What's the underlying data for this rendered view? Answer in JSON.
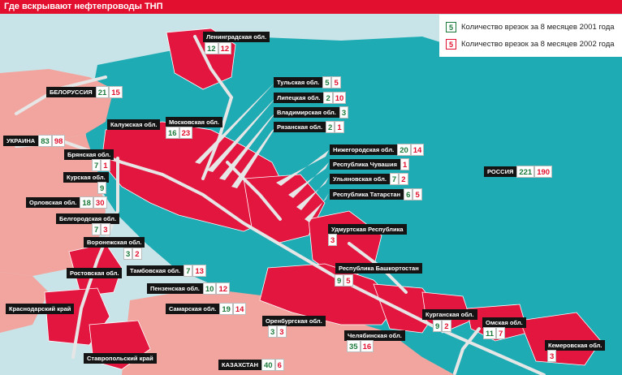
{
  "title": "Где вскрывают нефтепроводы ТНП",
  "legend": {
    "green_value": "5",
    "green_label": "Количество врезок за 8 месяцев 2001 года",
    "red_value": "5",
    "red_label": "Количество врезок за 8 месяцев 2002 года"
  },
  "colors": {
    "sea": "#c9e4e8",
    "russia": "#1eabb3",
    "foreign": "#f2a59e",
    "affected": "#e2163f",
    "border": "#ffffff",
    "pipeline": "#e6e6e6",
    "label_bg": "#141414",
    "green": "#1b7a3a",
    "red": "#e2102e"
  },
  "regions": [
    {
      "name": "Ленинградская обл.",
      "v2001": "12",
      "v2002": "12"
    },
    {
      "name": "БЕЛОРУССИЯ",
      "v2001": "21",
      "v2002": "15"
    },
    {
      "name": "Тульская обл.",
      "v2001": "5",
      "v2002": "5"
    },
    {
      "name": "Липецкая обл.",
      "v2001": "2",
      "v2002": "10"
    },
    {
      "name": "Владимирская обл.",
      "v2001": "3",
      "v2002": ""
    },
    {
      "name": "Рязанская обл.",
      "v2001": "2",
      "v2002": "1"
    },
    {
      "name": "Калужская обл.",
      "v2001": "",
      "v2002": ""
    },
    {
      "name": "Московская обл.",
      "v2001": "16",
      "v2002": "23"
    },
    {
      "name": "УКРАИНА",
      "v2001": "83",
      "v2002": "98"
    },
    {
      "name": "Брянская обл.",
      "v2001": "7",
      "v2002": "1"
    },
    {
      "name": "Курская обл.",
      "v2001": "9",
      "v2002": ""
    },
    {
      "name": "Орловская обл.",
      "v2001": "18",
      "v2002": "30"
    },
    {
      "name": "Белгородская обл.",
      "v2001": "7",
      "v2002": "3"
    },
    {
      "name": "Воронежская обл.",
      "v2001": "3",
      "v2002": "2"
    },
    {
      "name": "Ростовская обл.",
      "v2001": "",
      "v2002": ""
    },
    {
      "name": "Тамбовская обл.",
      "v2001": "7",
      "v2002": "13"
    },
    {
      "name": "Пензенская обл.",
      "v2001": "10",
      "v2002": "12"
    },
    {
      "name": "Краснодарский край",
      "v2001": "",
      "v2002": ""
    },
    {
      "name": "Самарская обл.",
      "v2001": "19",
      "v2002": "14"
    },
    {
      "name": "Ставропольский край",
      "v2001": "",
      "v2002": ""
    },
    {
      "name": "Нижегородская обл.",
      "v2001": "20",
      "v2002": "14"
    },
    {
      "name": "Республика Чувашия",
      "v2001": "",
      "v2002": "1"
    },
    {
      "name": "Ульяновская обл.",
      "v2001": "7",
      "v2002": "2"
    },
    {
      "name": "Республика Татарстан",
      "v2001": "6",
      "v2002": "5"
    },
    {
      "name": "РОССИЯ",
      "v2001": "221",
      "v2002": "190"
    },
    {
      "name": "Удмуртская Республика",
      "v2001": "",
      "v2002": "3"
    },
    {
      "name": "Республика Башкортостан",
      "v2001": "9",
      "v2002": "5"
    },
    {
      "name": "Оренбургская обл.",
      "v2001": "3",
      "v2002": "3"
    },
    {
      "name": "Челябинская обл.",
      "v2001": "35",
      "v2002": "16"
    },
    {
      "name": "Курганская обл.",
      "v2001": "9",
      "v2002": "2"
    },
    {
      "name": "Омская обл.",
      "v2001": "11",
      "v2002": "7"
    },
    {
      "name": "Кемеровская обл.",
      "v2001": "",
      "v2002": "3"
    },
    {
      "name": "КАЗАХСТАН",
      "v2001": "40",
      "v2002": "6"
    }
  ]
}
